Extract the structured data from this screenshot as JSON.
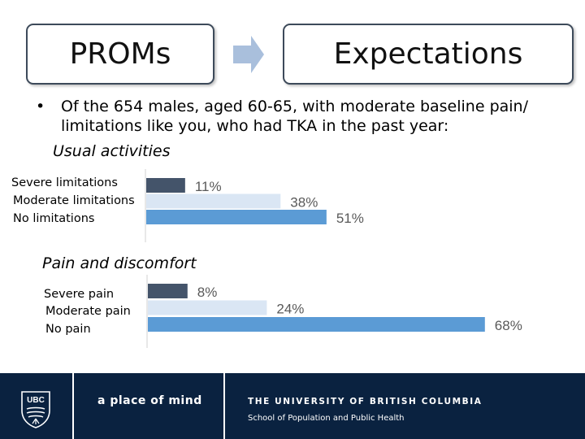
{
  "header": {
    "left_box": "PROMs",
    "right_box": "Expectations"
  },
  "intro": {
    "bullet": "•",
    "text": "Of the 654 males, aged 60-65, with moderate baseline pain/ limitations like you, who had TKA in the past year:"
  },
  "chart_data": [
    {
      "type": "bar",
      "orientation": "horizontal",
      "title": "Usual activities",
      "categories": [
        "Severe limitations",
        "Moderate limitations",
        "No limitations"
      ],
      "values": [
        11,
        38,
        51
      ],
      "value_labels": [
        "11%",
        "38%",
        "51%"
      ],
      "colors": [
        "#44546a",
        "#dae6f4",
        "#5b9bd5"
      ],
      "xlim": [
        0,
        70
      ]
    },
    {
      "type": "bar",
      "orientation": "horizontal",
      "title": "Pain and discomfort",
      "categories": [
        "Severe pain",
        "Moderate pain",
        "No pain"
      ],
      "values": [
        8,
        24,
        68
      ],
      "value_labels": [
        "8%",
        "24%",
        "68%"
      ],
      "colors": [
        "#44546a",
        "#dae6f4",
        "#5b9bd5"
      ],
      "xlim": [
        0,
        70
      ]
    }
  ],
  "footer": {
    "logo_text": "UBC",
    "tagline": "a place of mind",
    "university": "THE UNIVERSITY OF BRITISH COLUMBIA",
    "school": "School of Population and Public Health"
  }
}
